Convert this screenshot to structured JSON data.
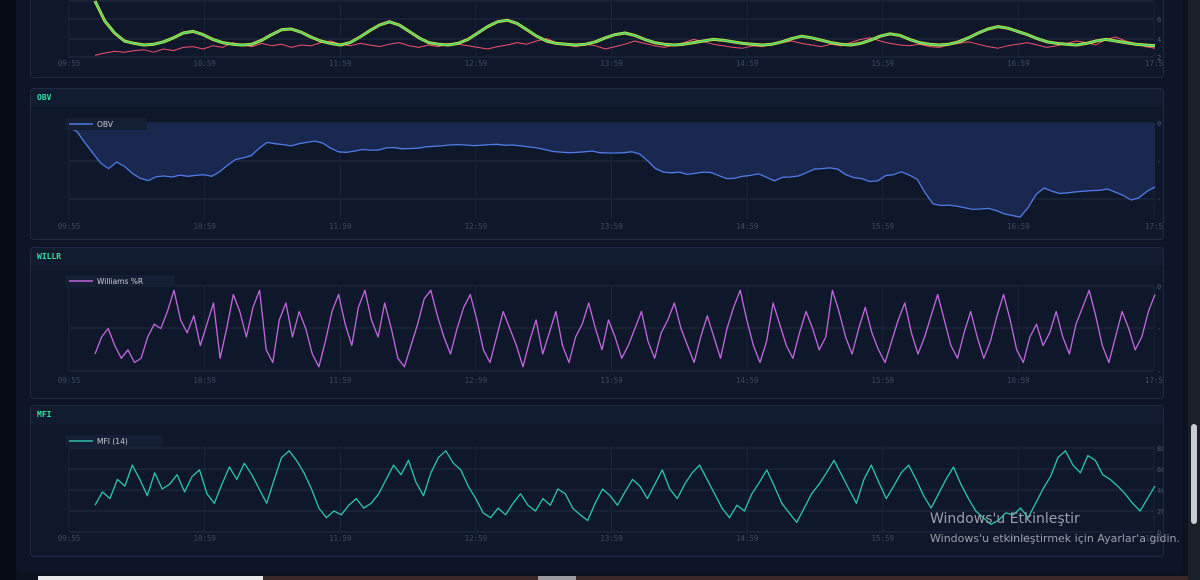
{
  "time_labels": [
    "09:55",
    "10:59",
    "11:59",
    "12:59",
    "13:59",
    "14:59",
    "15:59",
    "16:59",
    "17:5"
  ],
  "panels": {
    "top": {
      "right_ticks": [
        "6",
        "4",
        "2"
      ]
    },
    "obv": {
      "title": "OBV",
      "right_ticks": [
        "0",
        "-",
        "-"
      ]
    },
    "willr": {
      "title": "WILLR",
      "right_ticks": [
        "0",
        "-",
        "-"
      ]
    },
    "mfi": {
      "title": "MFI",
      "right_ticks": [
        "80",
        "60",
        "40",
        "20",
        "0"
      ]
    }
  },
  "watermark": {
    "line1": "Windows'u Etkinleştir",
    "line2": "Windows'u etkinleştirmek için Ayarlar'a gidin."
  },
  "colors": {
    "rsi": "#f0506e",
    "signal_outer": "#d6e636",
    "signal_inner": "#3fd17a",
    "obv": "#4f7be8",
    "willr": "#c366e0",
    "mfi": "#2cc4b0",
    "header": "#34e0a1"
  },
  "chart_data": [
    {
      "type": "line",
      "panel": "top",
      "ylim": [
        0,
        70
      ],
      "series": [
        {
          "values": [
            2,
            5,
            7,
            6,
            8,
            9,
            6,
            10,
            8,
            12,
            13,
            10,
            14,
            12,
            18,
            15,
            13,
            17,
            14,
            16,
            12,
            15,
            14,
            18,
            20,
            16,
            14,
            17,
            15,
            13,
            16,
            18,
            14,
            12,
            15,
            13,
            17,
            16,
            14,
            12,
            10,
            13,
            15,
            18,
            16,
            20,
            23,
            18,
            15,
            13,
            16,
            14,
            10,
            13,
            16,
            20,
            17,
            14,
            12,
            15,
            18,
            22,
            19,
            16,
            14,
            12,
            11,
            14,
            13,
            16,
            18,
            20,
            17,
            15,
            13,
            16,
            14,
            18,
            22,
            24,
            20,
            17,
            15,
            14,
            16,
            13,
            12,
            15,
            17,
            19,
            16,
            13,
            11,
            14,
            16,
            18,
            15,
            12,
            14,
            17,
            20,
            18,
            15,
            22,
            25,
            20,
            17,
            13,
            11
          ]
        },
        {
          "values": [
            70,
            45,
            30,
            20,
            17,
            15,
            16,
            19,
            24,
            30,
            32,
            28,
            22,
            18,
            16,
            15,
            16,
            21,
            28,
            34,
            35,
            31,
            25,
            20,
            17,
            15,
            18,
            25,
            33,
            40,
            44,
            40,
            32,
            24,
            18,
            16,
            15,
            17,
            22,
            30,
            38,
            44,
            46,
            42,
            34,
            26,
            20,
            17,
            16,
            15,
            16,
            19,
            24,
            28,
            30,
            27,
            22,
            18,
            16,
            15,
            16,
            18,
            20,
            22,
            21,
            19,
            17,
            16,
            15,
            16,
            19,
            23,
            26,
            24,
            21,
            18,
            16,
            15,
            17,
            21,
            26,
            29,
            27,
            22,
            18,
            16,
            15,
            16,
            19,
            24,
            30,
            35,
            38,
            36,
            32,
            28,
            23,
            19,
            17,
            16,
            15,
            17,
            20,
            22,
            20,
            18,
            16,
            15,
            14
          ]
        }
      ]
    },
    {
      "type": "area",
      "panel": "obv",
      "series": [
        {
          "name": "OBV",
          "values": [
            -1.8,
            -3,
            -6.5,
            -9.7,
            -12.8,
            -14.5,
            -12.5,
            -13.8,
            -16,
            -17.5,
            -18.2,
            -17,
            -16.8,
            -17.1,
            -16.5,
            -16.9,
            -16.6,
            -16.4,
            -16.9,
            -15.5,
            -13.5,
            -11.7,
            -11.2,
            -10.5,
            -8.2,
            -6.4,
            -6.8,
            -7.1,
            -7.5,
            -6.8,
            -6.4,
            -6,
            -6.6,
            -8.2,
            -9.3,
            -9.5,
            -9.1,
            -8.6,
            -8.8,
            -8.8,
            -8.1,
            -8,
            -8.4,
            -8.3,
            -8.2,
            -7.8,
            -7.6,
            -7.5,
            -7.2,
            -7.1,
            -7.2,
            -7.4,
            -7.3,
            -7.1,
            -7,
            -7.3,
            -7.2,
            -7.5,
            -7.8,
            -8.1,
            -8.6,
            -9.2,
            -9.4,
            -9.6,
            -9.5,
            -9.3,
            -9.1,
            -9.6,
            -9.7,
            -9.7,
            -9.6,
            -9.3,
            -10,
            -12.1,
            -14.5,
            -15.6,
            -15.8,
            -15.6,
            -16.3,
            -16,
            -15.6,
            -15.7,
            -16.7,
            -17.6,
            -17.5,
            -16.9,
            -16.6,
            -16.1,
            -17.2,
            -18.3,
            -17.2,
            -17.1,
            -16.8,
            -15.8,
            -14.7,
            -14.5,
            -14.3,
            -14.7,
            -16.4,
            -17.3,
            -17.6,
            -18.5,
            -18.3,
            -16.7,
            -16.4,
            -15.5,
            -16.5,
            -17.8,
            -22,
            -25.4,
            -25.9,
            -25.8,
            -26.1,
            -26.6,
            -27.1,
            -27,
            -26.8,
            -27.5,
            -28.5,
            -29,
            -29.5,
            -26.5,
            -22.5,
            -20.5,
            -21.5,
            -22.2,
            -22,
            -21.7,
            -21.5,
            -21.3,
            -21.2,
            -20.8,
            -21.8,
            -22.8,
            -24.2,
            -23.5,
            -21.5,
            -20.2
          ]
        }
      ]
    },
    {
      "type": "line",
      "panel": "willr",
      "ylim": [
        -100,
        0
      ],
      "series": [
        {
          "name": "Williams %R",
          "values": [
            -80,
            -60,
            -50,
            -70,
            -85,
            -75,
            -90,
            -85,
            -60,
            -45,
            -50,
            -30,
            -5,
            -40,
            -55,
            -35,
            -70,
            -45,
            -20,
            -85,
            -50,
            -10,
            -30,
            -60,
            -25,
            -5,
            -75,
            -90,
            -40,
            -20,
            -60,
            -30,
            -50,
            -80,
            -95,
            -65,
            -30,
            -10,
            -45,
            -70,
            -25,
            -5,
            -40,
            -60,
            -20,
            -50,
            -85,
            -95,
            -70,
            -45,
            -15,
            -5,
            -35,
            -60,
            -80,
            -50,
            -25,
            -10,
            -40,
            -75,
            -90,
            -60,
            -30,
            -50,
            -70,
            -95,
            -65,
            -40,
            -80,
            -55,
            -30,
            -70,
            -90,
            -60,
            -45,
            -20,
            -50,
            -75,
            -40,
            -60,
            -85,
            -70,
            -50,
            -30,
            -65,
            -85,
            -55,
            -40,
            -20,
            -50,
            -70,
            -90,
            -60,
            -35,
            -60,
            -85,
            -50,
            -25,
            -5,
            -40,
            -70,
            -90,
            -65,
            -20,
            -45,
            -70,
            -85,
            -55,
            -30,
            -50,
            -75,
            -60,
            -5,
            -30,
            -60,
            -80,
            -50,
            -25,
            -55,
            -75,
            -90,
            -65,
            -40,
            -20,
            -55,
            -80,
            -60,
            -35,
            -10,
            -40,
            -70,
            -85,
            -55,
            -30,
            -60,
            -85,
            -65,
            -35,
            -10,
            -40,
            -75,
            -90,
            -60,
            -45,
            -70,
            -55,
            -30,
            -60,
            -80,
            -45,
            -25,
            -5,
            -35,
            -70,
            -90,
            -60,
            -30,
            -50,
            -75,
            -60,
            -30,
            -10
          ]
        }
      ]
    },
    {
      "type": "line",
      "panel": "mfi",
      "ylim": [
        0,
        90
      ],
      "series": [
        {
          "name": "MFI (14)",
          "values": [
            28,
            42,
            35,
            55,
            48,
            70,
            55,
            38,
            62,
            45,
            50,
            60,
            42,
            58,
            65,
            40,
            30,
            50,
            68,
            55,
            72,
            60,
            45,
            30,
            55,
            78,
            85,
            75,
            62,
            45,
            25,
            15,
            22,
            18,
            28,
            35,
            25,
            30,
            40,
            55,
            70,
            60,
            75,
            52,
            38,
            62,
            78,
            85,
            72,
            65,
            48,
            35,
            20,
            15,
            25,
            18,
            30,
            40,
            28,
            22,
            35,
            28,
            45,
            40,
            25,
            18,
            12,
            30,
            45,
            38,
            28,
            42,
            55,
            48,
            35,
            50,
            65,
            45,
            35,
            50,
            62,
            70,
            55,
            40,
            25,
            15,
            28,
            22,
            40,
            52,
            65,
            48,
            30,
            20,
            10,
            25,
            40,
            50,
            62,
            75,
            60,
            45,
            30,
            55,
            70,
            52,
            35,
            48,
            62,
            70,
            55,
            38,
            25,
            40,
            55,
            68,
            50,
            35,
            22,
            15,
            8,
            12,
            20,
            18,
            25,
            15,
            30,
            45,
            58,
            78,
            85,
            70,
            62,
            80,
            75,
            60,
            55,
            48,
            40,
            30,
            22,
            35,
            48
          ]
        }
      ]
    }
  ]
}
